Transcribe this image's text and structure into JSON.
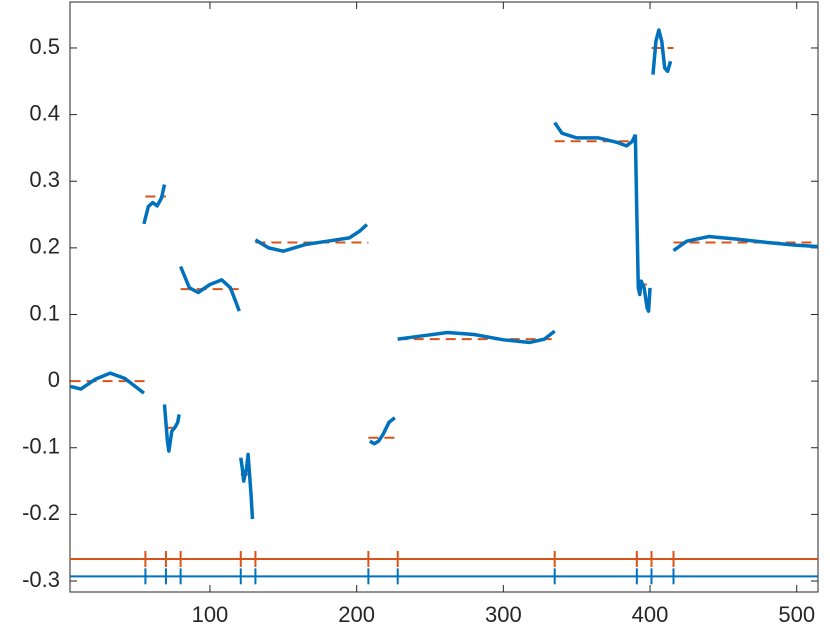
{
  "chart_data": {
    "type": "piecewise",
    "xlim": [
      4.6,
      514.5
    ],
    "ylim": [
      -0.3165,
      0.569
    ],
    "xticks": [
      100,
      200,
      300,
      400,
      500
    ],
    "yticks": [
      -0.3,
      -0.2,
      -0.1,
      0,
      0.1,
      0.2,
      0.3,
      0.4,
      0.5
    ],
    "fit_color": "#0072bd",
    "level_color": "#d95319",
    "fit_segments": [
      {
        "x": [
          5,
          12,
          22,
          32,
          42,
          55
        ],
        "values": [
          -0.008,
          -0.012,
          0.003,
          0.012,
          0.004,
          -0.018
        ]
      },
      {
        "x": [
          55,
          58,
          61,
          64,
          67,
          69
        ],
        "values": [
          0.236,
          0.262,
          0.268,
          0.263,
          0.275,
          0.295
        ]
      },
      {
        "x": [
          69,
          71,
          72,
          74,
          76,
          78,
          79
        ],
        "values": [
          -0.035,
          -0.09,
          -0.105,
          -0.075,
          -0.07,
          -0.062,
          -0.05
        ]
      },
      {
        "x": [
          80,
          86,
          92,
          100,
          108,
          114,
          120
        ],
        "values": [
          0.172,
          0.14,
          0.133,
          0.145,
          0.152,
          0.14,
          0.105
        ]
      },
      {
        "x": [
          121,
          122,
          123,
          125,
          126,
          128,
          129
        ],
        "values": [
          -0.115,
          -0.13,
          -0.15,
          -0.13,
          -0.11,
          -0.17,
          -0.207
        ]
      },
      {
        "x": [
          131,
          140,
          150,
          165,
          180,
          195,
          202,
          207
        ],
        "values": [
          0.212,
          0.2,
          0.195,
          0.205,
          0.21,
          0.215,
          0.225,
          0.235
        ]
      },
      {
        "x": [
          209,
          212,
          215,
          218,
          222,
          226
        ],
        "values": [
          -0.09,
          -0.094,
          -0.09,
          -0.08,
          -0.062,
          -0.055
        ]
      },
      {
        "x": [
          228,
          245,
          262,
          280,
          300,
          318,
          328,
          335
        ],
        "values": [
          0.063,
          0.068,
          0.073,
          0.07,
          0.062,
          0.058,
          0.063,
          0.075
        ]
      },
      {
        "x": [
          335,
          340,
          350,
          365,
          378,
          384,
          388,
          390
        ],
        "values": [
          0.388,
          0.372,
          0.365,
          0.365,
          0.358,
          0.353,
          0.36,
          0.37
        ]
      },
      {
        "x": [
          390,
          391,
          392,
          393,
          394,
          396,
          398,
          399,
          400
        ],
        "values": [
          0.37,
          0.25,
          0.14,
          0.13,
          0.15,
          0.14,
          0.11,
          0.105,
          0.14
        ]
      },
      {
        "x": [
          402,
          404,
          406,
          408,
          410,
          412,
          414
        ],
        "values": [
          0.46,
          0.51,
          0.527,
          0.51,
          0.47,
          0.465,
          0.48
        ]
      },
      {
        "x": [
          416,
          425,
          440,
          460,
          480,
          500,
          514
        ],
        "values": [
          0.196,
          0.21,
          0.217,
          0.213,
          0.208,
          0.204,
          0.202
        ]
      }
    ],
    "levels": [
      {
        "x": [
          5,
          56
        ],
        "value": 0
      },
      {
        "x": [
          56,
          70
        ],
        "value": 0.277
      },
      {
        "x": [
          70,
          80
        ],
        "value": -0.07
      },
      {
        "x": [
          80,
          121
        ],
        "value": 0.138
      },
      {
        "x": [
          121,
          131
        ],
        "value": -0.14
      },
      {
        "x": [
          131,
          208
        ],
        "value": 0.208
      },
      {
        "x": [
          208,
          228
        ],
        "value": -0.085
      },
      {
        "x": [
          228,
          335
        ],
        "value": 0.063
      },
      {
        "x": [
          335,
          391
        ],
        "value": 0.36
      },
      {
        "x": [
          391,
          401
        ],
        "value": 0.145
      },
      {
        "x": [
          401,
          416
        ],
        "value": 0.5
      },
      {
        "x": [
          416,
          514
        ],
        "value": 0.208
      }
    ],
    "breaks": [
      56,
      70,
      80,
      121,
      131,
      208,
      228,
      335,
      391,
      401,
      416
    ],
    "break_lines": [
      {
        "value": -0.267,
        "color": "#d95319"
      },
      {
        "value": -0.293,
        "color": "#0072bd"
      }
    ]
  }
}
